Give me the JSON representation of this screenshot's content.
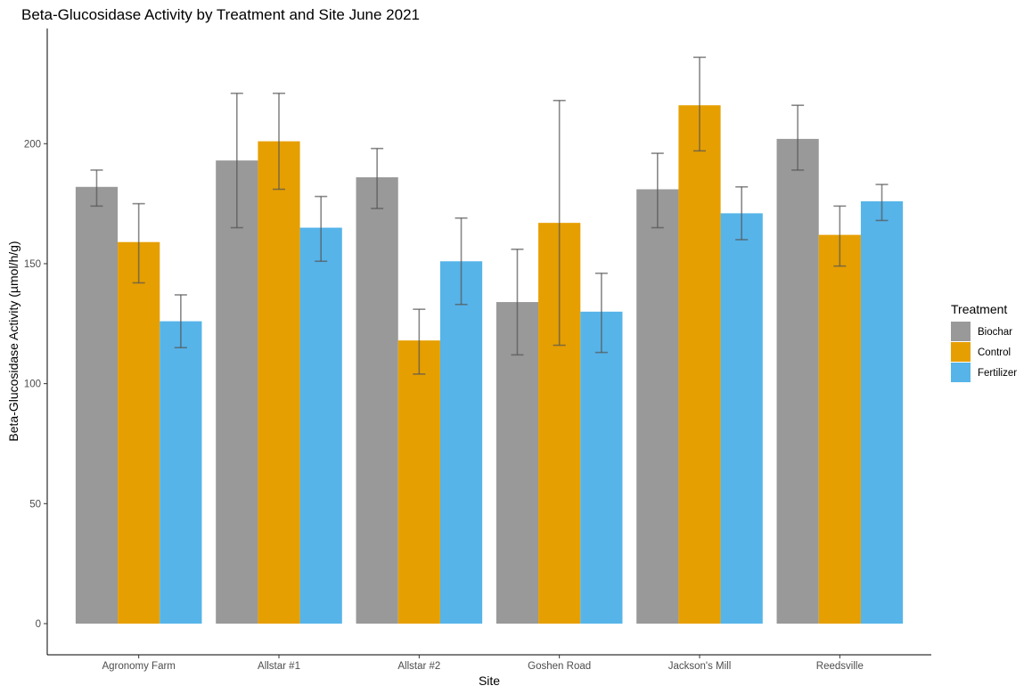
{
  "chart_data": {
    "type": "bar",
    "title": "Beta-Glucosidase Activity by Treatment and Site June 2021",
    "xlabel": "Site",
    "ylabel": "Beta-Glucosidase Activity (µmol/h/g)",
    "ylim": [
      -13,
      248
    ],
    "yticks": [
      0,
      50,
      100,
      150,
      200
    ],
    "grid": false,
    "legend": {
      "title": "Treatment",
      "position": "right"
    },
    "categories": [
      "Agronomy Farm",
      "Allstar #1",
      "Allstar #2",
      "Goshen Road",
      "Jackson's Mill",
      "Reedsville"
    ],
    "series": [
      {
        "name": "Biochar",
        "color": "#999999",
        "values": [
          182,
          193,
          186,
          134,
          181,
          202
        ],
        "err_low": [
          174,
          165,
          173,
          112,
          165,
          189
        ],
        "err_high": [
          189,
          221,
          198,
          156,
          196,
          216
        ]
      },
      {
        "name": "Control",
        "color": "#E69F00",
        "values": [
          159,
          201,
          118,
          167,
          216,
          162
        ],
        "err_low": [
          142,
          181,
          104,
          116,
          197,
          149
        ],
        "err_high": [
          175,
          221,
          131,
          218,
          236,
          174
        ]
      },
      {
        "name": "Fertilizer",
        "color": "#56B4E9",
        "values": [
          126,
          165,
          151,
          130,
          171,
          176
        ],
        "err_low": [
          115,
          151,
          133,
          113,
          160,
          168
        ],
        "err_high": [
          137,
          178,
          169,
          146,
          182,
          183
        ]
      }
    ]
  }
}
